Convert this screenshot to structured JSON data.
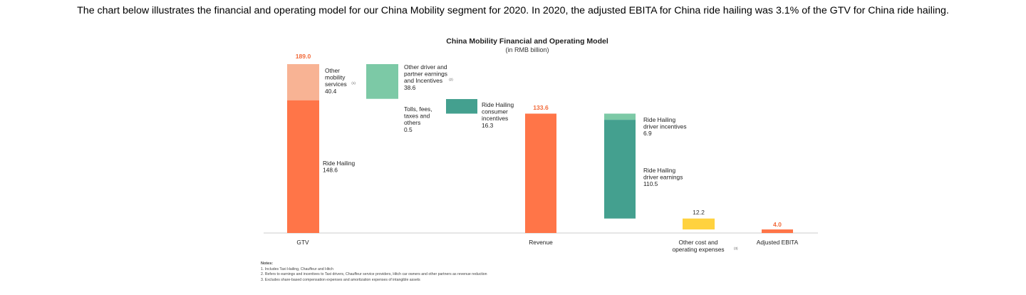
{
  "intro_text": "The chart below illustrates the financial and operating model for our China Mobility segment for 2020. In 2020, the adjusted EBITA for China ride hailing was 3.1% of the GTV for China ride hailing.",
  "chart_data": {
    "type": "bar",
    "title": "China Mobility Financial and Operating Model",
    "subtitle": "(in RMB billion)",
    "ylim": [
      0,
      189.0
    ],
    "grid": false,
    "colors": {
      "gtv_other": "#F8B394",
      "orange": "#FF7548",
      "light_teal": "#7CC9A6",
      "dark_teal": "#44A08F",
      "yellow": "#FFD23F",
      "label_orange": "#F26A3A",
      "baseline": "#cccccc"
    },
    "categories": [
      "GTV",
      "Revenue",
      "Other cost and operating expenses",
      "Adjusted EBITA"
    ],
    "bars": [
      {
        "id": "gtv-ride-hailing",
        "start": 0,
        "end": 148.6,
        "value": 148.6,
        "color": "orange",
        "label_lines": [
          "Ride Hailing",
          "148.6"
        ]
      },
      {
        "id": "gtv-other-mobility",
        "start": 148.6,
        "end": 189.0,
        "value": 40.4,
        "color": "gtv_other",
        "label_lines": [
          "Other",
          "mobility",
          "services",
          "40.4"
        ],
        "footnote": "(1)",
        "total_label": "189.0"
      },
      {
        "id": "other-driver-partner",
        "start": 150.4,
        "end": 189.0,
        "value": 38.6,
        "color": "light_teal",
        "label_lines": [
          "Other driver and",
          "partner earnings",
          "and Incentives",
          "38.6"
        ],
        "footnote": "(2)"
      },
      {
        "id": "tolls-fees",
        "start": 149.9,
        "end": 150.4,
        "value": 0.5,
        "color": "light_teal",
        "label_lines": [
          "Tolls, fees,",
          "taxes and",
          "others",
          "0.5"
        ]
      },
      {
        "id": "ride-hailing-consumer-incentives",
        "start": 133.6,
        "end": 149.9,
        "value": 16.3,
        "color": "dark_teal",
        "label_lines": [
          "Ride Hailing",
          "consumer",
          "incentives",
          "16.3"
        ]
      },
      {
        "id": "revenue",
        "start": 0,
        "end": 133.6,
        "value": 133.6,
        "color": "orange",
        "total_label": "133.6"
      },
      {
        "id": "ride-hailing-driver-incentives",
        "start": 126.7,
        "end": 133.6,
        "value": 6.9,
        "color": "light_teal",
        "label_lines": [
          "Ride Hailing",
          "driver incentives",
          "6.9"
        ]
      },
      {
        "id": "ride-hailing-driver-earnings",
        "start": 16.2,
        "end": 126.7,
        "value": 110.5,
        "color": "dark_teal",
        "label_lines": [
          "Ride Hailing",
          "driver earnings",
          "110.5"
        ]
      },
      {
        "id": "other-cost-opex",
        "start": 4.0,
        "end": 16.2,
        "value": 12.2,
        "color": "yellow",
        "total_label": "12.2"
      },
      {
        "id": "adjusted-ebita",
        "start": 0,
        "end": 4.0,
        "value": 4.0,
        "color": "orange",
        "total_label": "4.0"
      }
    ],
    "axis_labels": [
      {
        "id": "gtv",
        "lines": [
          "GTV"
        ]
      },
      {
        "id": "revenue",
        "lines": [
          "Revenue"
        ]
      },
      {
        "id": "other-cost",
        "lines": [
          "Other cost and",
          "operating expenses"
        ],
        "footnote": "(3)"
      },
      {
        "id": "adjusted-ebita",
        "lines": [
          "Adjusted EBITA"
        ]
      }
    ]
  },
  "notes": {
    "title": "Notes:",
    "items": [
      "1. Includes Taxi Hailing, Chauffeur and Hitch",
      "2. Refers to earnings and incentives to Taxi drivers, Chauffeur service providers, Hitch car owners and other partners as revenue reduction",
      "3. Excludes share-based compensation expenses and amortization expenses of intangible assets"
    ]
  }
}
